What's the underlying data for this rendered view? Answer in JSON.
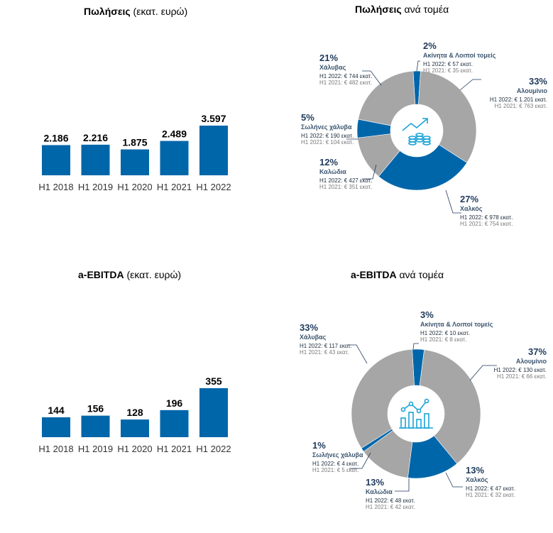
{
  "sales_bar": {
    "title_bold": "Πωλήσεις",
    "title_rest": " (εκατ. ευρώ)"
  },
  "sales_pie": {
    "title_bold": "Πωλήσεις",
    "title_rest": " ανά τομέα"
  },
  "ebitda_bar": {
    "title_bold": "a-EBITDA",
    "title_rest": " (εκατ. ευρώ)"
  },
  "ebitda_pie": {
    "title_bold": "a-EBITDA",
    "title_rest": " ανά τομέα"
  },
  "colors": {
    "blue": "#0066aa",
    "gray": "#a6a6a6",
    "icon": "#1aa3d6",
    "label_dark": "#1f3a5c"
  },
  "chart_data": [
    {
      "type": "bar",
      "title": "Πωλήσεις (εκατ. ευρώ)",
      "categories": [
        "H1 2018",
        "H1 2019",
        "H1 2020",
        "H1 2021",
        "H1 2022"
      ],
      "values": [
        2186,
        2216,
        1875,
        2489,
        3597
      ],
      "value_labels": [
        "2.186",
        "2.216",
        "1.875",
        "2.489",
        "3.597"
      ],
      "ylim": [
        0,
        3700
      ]
    },
    {
      "type": "pie",
      "title": "Πωλήσεις ανά τομέα",
      "slices": [
        {
          "name": "Ακίνητα & Λοιποί τομείς",
          "pct": "2%",
          "value": 2,
          "color": "#0066aa",
          "h1_2022": "H1 2022: € 57 εκατ.",
          "h1_2021": "H1 2021: € 35 εκατ."
        },
        {
          "name": "Αλουμίνιο",
          "pct": "33%",
          "value": 33,
          "color": "#a6a6a6",
          "h1_2022": "H1 2022: € 1.201 εκατ.",
          "h1_2021": "H1 2021: € 763 εκατ."
        },
        {
          "name": "Χαλκός",
          "pct": "27%",
          "value": 27,
          "color": "#0066aa",
          "h1_2022": "H1 2022: € 978 εκατ.",
          "h1_2021": "H1 2021: € 754 εκατ."
        },
        {
          "name": "Καλώδια",
          "pct": "12%",
          "value": 12,
          "color": "#a6a6a6",
          "h1_2022": "H1 2022: € 427 εκατ.",
          "h1_2021": "H1 2021: € 351 εκατ."
        },
        {
          "name": "Σωλήνες χάλυβα",
          "pct": "5%",
          "value": 5,
          "color": "#0066aa",
          "h1_2022": "H1 2022: € 190 εκατ.",
          "h1_2021": "H1 2021: € 104 εκατ."
        },
        {
          "name": "Χάλυβας",
          "pct": "21%",
          "value": 21,
          "color": "#a6a6a6",
          "h1_2022": "H1 2022: € 744 εκατ.",
          "h1_2021": "H1 2021: € 482 εκατ."
        }
      ]
    },
    {
      "type": "bar",
      "title": "a-EBITDA (εκατ. ευρώ)",
      "categories": [
        "H1 2018",
        "H1 2019",
        "H1 2020",
        "H1 2021",
        "H1 2022"
      ],
      "values": [
        144,
        156,
        128,
        196,
        355
      ],
      "value_labels": [
        "144",
        "156",
        "128",
        "196",
        "355"
      ],
      "ylim": [
        0,
        370
      ]
    },
    {
      "type": "pie",
      "title": "a-EBITDA ανά τομέα",
      "slices": [
        {
          "name": "Ακίνητα & Λοιποί τομείς",
          "pct": "3%",
          "value": 3,
          "color": "#0066aa",
          "h1_2022": "H1 2022: € 10 εκατ.",
          "h1_2021": "H1 2021: € 8 εκατ."
        },
        {
          "name": "Αλουμίνιο",
          "pct": "37%",
          "value": 37,
          "color": "#a6a6a6",
          "h1_2022": "H1 2022: € 130 εκατ.",
          "h1_2021": "H1 2021: € 66 εκατ."
        },
        {
          "name": "Χαλκός",
          "pct": "13%",
          "value": 13,
          "color": "#0066aa",
          "h1_2022": "H1 2022: € 47 εκατ.",
          "h1_2021": "H1 2021: € 32 εκατ."
        },
        {
          "name": "Καλώδια",
          "pct": "13%",
          "value": 13,
          "color": "#a6a6a6",
          "h1_2022": "H1 2022: € 48 εκατ.",
          "h1_2021": "H1 2021: € 42 εκατ."
        },
        {
          "name": "Σωλήνες χάλυβα",
          "pct": "1%",
          "value": 1,
          "color": "#0066aa",
          "h1_2022": "H1 2022: € 4 εκατ.",
          "h1_2021": "H1 2021: € 5 εκατ."
        },
        {
          "name": "Χάλυβας",
          "pct": "33%",
          "value": 33,
          "color": "#a6a6a6",
          "h1_2022": "H1 2022: € 117 εκατ.",
          "h1_2021": "H1 2021: € 43 εκατ."
        }
      ]
    }
  ]
}
